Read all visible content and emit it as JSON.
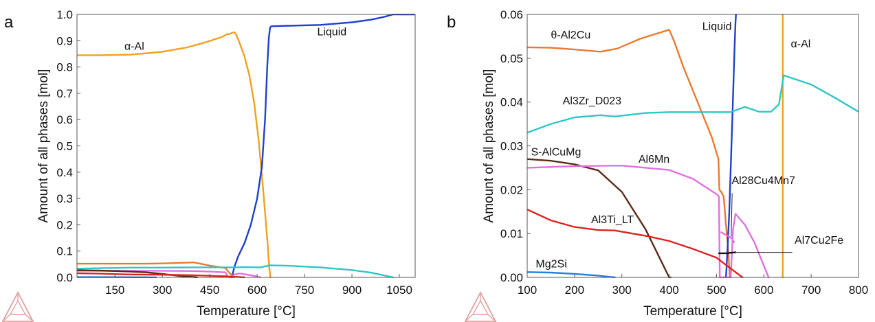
{
  "chart_data": [
    {
      "type": "line",
      "panel_label": "a",
      "xlabel": "Temperature [°C]",
      "ylabel": "Amount of all phases [mol]",
      "xlim": [
        30,
        1100
      ],
      "ylim": [
        0,
        1.0
      ],
      "xticks": [
        150,
        300,
        450,
        600,
        750,
        900,
        1050
      ],
      "yticks": [
        0.0,
        0.1,
        0.2,
        0.3,
        0.4,
        0.5,
        0.6,
        0.7,
        0.8,
        0.9,
        1.0
      ],
      "ytick_decimals": 1,
      "grid": false,
      "series": [
        {
          "name": "α-Al",
          "label": "α-Al",
          "label_at": [
            180,
            0.865
          ],
          "color": "#f0a020",
          "x": [
            30,
            100,
            200,
            300,
            380,
            440,
            490,
            505,
            512,
            520,
            528,
            535,
            545,
            560,
            575,
            590,
            605,
            620,
            633,
            638,
            642
          ],
          "y": [
            0.845,
            0.845,
            0.847,
            0.858,
            0.875,
            0.895,
            0.915,
            0.925,
            0.925,
            0.93,
            0.932,
            0.92,
            0.89,
            0.84,
            0.77,
            0.67,
            0.52,
            0.32,
            0.13,
            0.04,
            0.0
          ]
        },
        {
          "name": "Liquid",
          "label": "Liquid",
          "label_at": [
            790,
            0.92
          ],
          "color": "#1f3fcc",
          "x": [
            520,
            528,
            540,
            560,
            580,
            600,
            615,
            625,
            632,
            637,
            641,
            645,
            700,
            800,
            900,
            960,
            1000,
            1030,
            1100
          ],
          "y": [
            0.0,
            0.04,
            0.08,
            0.13,
            0.2,
            0.3,
            0.42,
            0.6,
            0.8,
            0.91,
            0.95,
            0.955,
            0.957,
            0.96,
            0.97,
            0.98,
            0.99,
            1.0,
            1.0
          ]
        },
        {
          "name": "θ-Al2Cu",
          "color": "#e87a30",
          "x": [
            30,
            150,
            250,
            300,
            400,
            450,
            500,
            510,
            520,
            525
          ],
          "y": [
            0.052,
            0.052,
            0.052,
            0.053,
            0.057,
            0.045,
            0.035,
            0.02,
            0.008,
            0.0
          ]
        },
        {
          "name": "Al3Zr_D023",
          "color": "#2ec6c6",
          "x": [
            30,
            100,
            200,
            290,
            400,
            500,
            530,
            560,
            610,
            640,
            700,
            800,
            900,
            960,
            1000,
            1030
          ],
          "y": [
            0.033,
            0.035,
            0.037,
            0.037,
            0.038,
            0.038,
            0.038,
            0.039,
            0.038,
            0.046,
            0.044,
            0.038,
            0.028,
            0.018,
            0.008,
            0.0
          ]
        },
        {
          "name": "Al6Mn",
          "color": "#e070e0",
          "x": [
            30,
            100,
            200,
            300,
            400,
            450,
            500,
            507,
            515,
            530,
            545,
            560,
            580,
            600,
            610
          ],
          "y": [
            0.025,
            0.025,
            0.025,
            0.025,
            0.024,
            0.022,
            0.019,
            0.003,
            0.0,
            0.012,
            0.015,
            0.012,
            0.008,
            0.003,
            0.0
          ]
        },
        {
          "name": "S-AlCuMg",
          "color": "#5a2a18",
          "x": [
            30,
            100,
            200,
            250,
            300,
            350,
            400,
            410
          ],
          "y": [
            0.027,
            0.026,
            0.022,
            0.019,
            0.013,
            0.006,
            0.001,
            0.0
          ]
        },
        {
          "name": "Al3Ti_LT",
          "color": "#e02020",
          "x": [
            30,
            100,
            200,
            300,
            400,
            450,
            500,
            530,
            560
          ],
          "y": [
            0.016,
            0.014,
            0.011,
            0.01,
            0.008,
            0.006,
            0.004,
            0.002,
            0.0
          ]
        },
        {
          "name": "Mg2Si",
          "color": "#2080e0",
          "x": [
            30,
            100,
            200,
            280
          ],
          "y": [
            0.001,
            0.001,
            0.0005,
            0.0
          ]
        }
      ]
    },
    {
      "type": "line",
      "panel_label": "b",
      "xlabel": "Temperature [°C]",
      "ylabel": "Amount of all phases [mol]",
      "xlim": [
        100,
        800
      ],
      "ylim": [
        0,
        0.06
      ],
      "xticks": [
        100,
        200,
        300,
        400,
        500,
        600,
        700,
        800
      ],
      "yticks": [
        0.0,
        0.01,
        0.02,
        0.03,
        0.04,
        0.05,
        0.06
      ],
      "ytick_decimals": 2,
      "grid": false,
      "series": [
        {
          "name": "θ-Al2Cu",
          "label": "θ-Al2Cu",
          "label_at": [
            150,
            0.0545
          ],
          "color": "#e87a30",
          "x": [
            100,
            150,
            200,
            255,
            290,
            340,
            400,
            410,
            430,
            460,
            490,
            504,
            506,
            510,
            515,
            520,
            525,
            528
          ],
          "y": [
            0.0525,
            0.0524,
            0.052,
            0.0515,
            0.0522,
            0.0545,
            0.0565,
            0.054,
            0.048,
            0.04,
            0.032,
            0.027,
            0.02,
            0.0195,
            0.0185,
            0.012,
            0.006,
            0.0
          ]
        },
        {
          "name": "Liquid",
          "label": "Liquid",
          "label_at": [
            470,
            0.0565
          ],
          "color": "#1f3fcc",
          "x": [
            520,
            523,
            527,
            530,
            533,
            536,
            538,
            540,
            541
          ],
          "y": [
            0.0,
            0.006,
            0.015,
            0.025,
            0.035,
            0.045,
            0.052,
            0.058,
            0.06
          ]
        },
        {
          "name": "α-Al",
          "label": "α-Al",
          "label_at": [
            657,
            0.0525
          ],
          "color": "#f0a020",
          "x": [
            640,
            640
          ],
          "y": [
            0.0,
            0.06
          ]
        },
        {
          "name": "Al3Zr_D023",
          "label": "Al3Zr_D023",
          "label_at": [
            175,
            0.0395
          ],
          "color": "#2ec6c6",
          "x": [
            100,
            150,
            200,
            255,
            285,
            350,
            400,
            450,
            500,
            530,
            560,
            590,
            615,
            632,
            642,
            650,
            700,
            750,
            800
          ],
          "y": [
            0.033,
            0.035,
            0.0365,
            0.037,
            0.0367,
            0.0375,
            0.0377,
            0.0377,
            0.0377,
            0.0377,
            0.0389,
            0.0378,
            0.0378,
            0.0395,
            0.0461,
            0.0458,
            0.044,
            0.041,
            0.0378
          ]
        },
        {
          "name": "S-AlCuMg",
          "label": "S-AlCuMg",
          "label_at": [
            108,
            0.0278
          ],
          "color": "#5a2a18",
          "x": [
            100,
            150,
            200,
            250,
            300,
            350,
            400,
            403
          ],
          "y": [
            0.027,
            0.0266,
            0.0258,
            0.0244,
            0.0195,
            0.011,
            0.0,
            0.0
          ]
        },
        {
          "name": "Al6Mn",
          "label": "Al6Mn",
          "label_at": [
            335,
            0.0262
          ],
          "color": "#e070e0",
          "x": [
            100,
            200,
            300,
            400,
            450,
            500,
            505,
            507,
            510,
            530,
            535,
            540,
            560,
            580,
            595,
            610
          ],
          "y": [
            0.025,
            0.0254,
            0.0255,
            0.0245,
            0.0225,
            0.019,
            0.0185,
            0.0,
            0.0,
            0.0,
            0.011,
            0.0145,
            0.012,
            0.008,
            0.004,
            0.0
          ]
        },
        {
          "name": "Al28Cu4Mn7",
          "label": "Al28Cu4Mn7",
          "label_at": [
            532,
            0.0213
          ],
          "color": "#e070e0",
          "x": [
            510,
            525,
            533,
            537
          ],
          "y": [
            0.0103,
            0.0094,
            0.0088,
            0.008
          ]
        },
        {
          "name": "Al3Ti_LT",
          "label": "Al3Ti_LT",
          "label_at": [
            235,
            0.0124
          ],
          "color": "#e02020",
          "x": [
            100,
            150,
            200,
            250,
            285,
            350,
            400,
            450,
            500,
            530,
            555
          ],
          "y": [
            0.0155,
            0.013,
            0.0115,
            0.0108,
            0.0107,
            0.0095,
            0.0083,
            0.0065,
            0.0045,
            0.002,
            0.0
          ]
        },
        {
          "name": "Al7Cu2Fe",
          "label": "Al7Cu2Fe",
          "label_at": [
            665,
            0.0077
          ],
          "color": "#111111",
          "x": [
            505,
            525,
            527,
            540
          ],
          "y": [
            0.0055,
            0.0055,
            0.0056,
            0.0057
          ]
        },
        {
          "name": "Mg2Si",
          "label": "Mg2Si",
          "label_at": [
            118,
            0.0023
          ],
          "color": "#2080e0",
          "x": [
            100,
            150,
            200,
            250,
            285
          ],
          "y": [
            0.0012,
            0.0011,
            0.0008,
            0.0004,
            0.0
          ]
        }
      ]
    }
  ],
  "logo_color": "#d98a8a"
}
